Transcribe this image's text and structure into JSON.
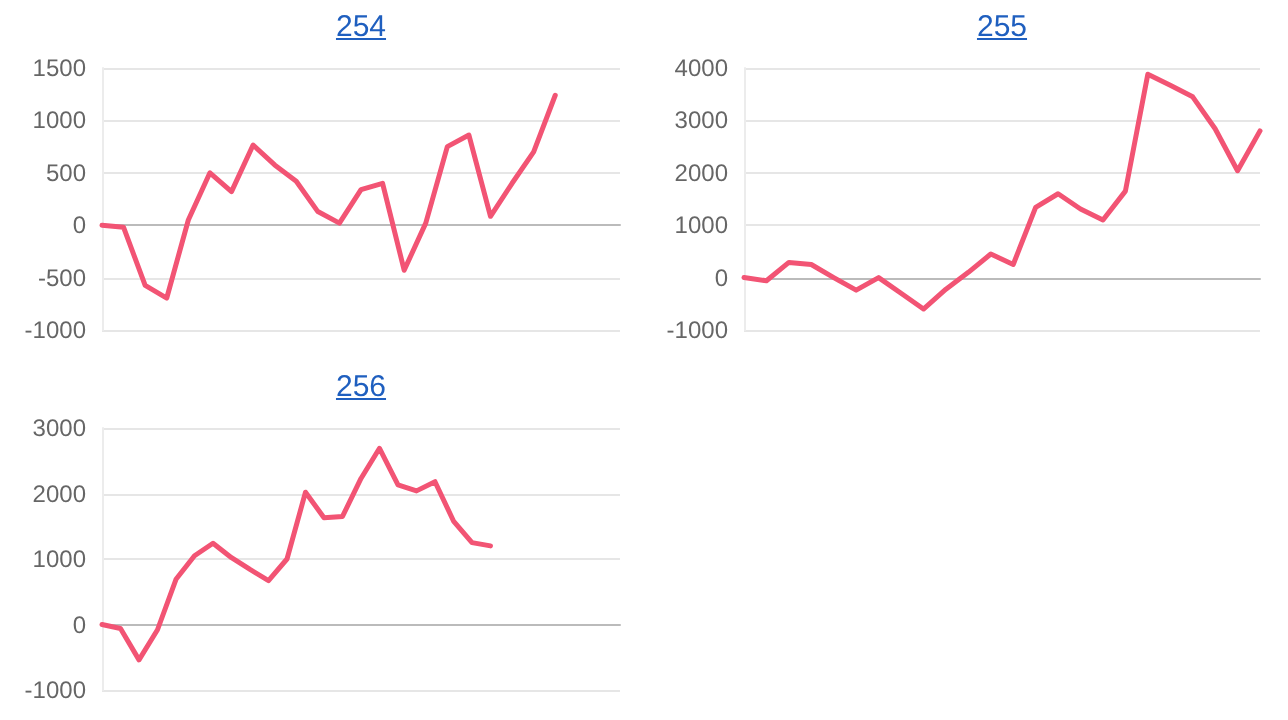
{
  "chart_data": [
    {
      "type": "line",
      "title": "254",
      "categories": [
        null,
        null,
        null,
        null,
        null,
        null,
        null,
        null,
        null,
        null,
        null,
        null,
        null,
        null,
        null,
        null,
        null,
        null,
        null,
        null,
        null,
        null,
        null,
        null,
        null
      ],
      "series": [
        {
          "color": "#f25474",
          "values": [
            0,
            -20,
            -575,
            -695,
            50,
            500,
            320,
            765,
            575,
            420,
            130,
            20,
            340,
            400,
            -430,
            20,
            750,
            860,
            85,
            400,
            700,
            1240,
            null,
            null,
            null
          ]
        }
      ],
      "ylim": [
        -1000,
        1500
      ],
      "yticks": [
        -1000,
        -500,
        0,
        500,
        1000,
        1500
      ],
      "grid": "y",
      "marker": "none",
      "line_style": "solid",
      "tick_labels": "y"
    },
    {
      "type": "line",
      "title": "255",
      "categories": [
        null,
        null,
        null,
        null,
        null,
        null,
        null,
        null,
        null,
        null,
        null,
        null,
        null,
        null,
        null,
        null,
        null,
        null,
        null,
        null,
        null,
        null,
        null,
        null
      ],
      "series": [
        {
          "color": "#f25474",
          "values": [
            0,
            -60,
            290,
            250,
            0,
            -240,
            0,
            -300,
            -600,
            -220,
            100,
            450,
            250,
            1340,
            1600,
            1310,
            1100,
            1650,
            3880,
            3670,
            3450,
            2840,
            2040,
            2800
          ]
        }
      ],
      "ylim": [
        -1000,
        4000
      ],
      "yticks": [
        -1000,
        0,
        1000,
        2000,
        3000,
        4000
      ],
      "grid": "y",
      "marker": "none",
      "line_style": "solid",
      "tick_labels": "y"
    },
    {
      "type": "line",
      "title": "256",
      "categories": [
        null,
        null,
        null,
        null,
        null,
        null,
        null,
        null,
        null,
        null,
        null,
        null,
        null,
        null,
        null,
        null,
        null,
        null,
        null,
        null,
        null,
        null,
        null,
        null,
        null,
        null,
        null,
        null,
        null
      ],
      "series": [
        {
          "color": "#f25474",
          "values": [
            0,
            -60,
            -540,
            -80,
            690,
            1050,
            1240,
            1020,
            840,
            670,
            1000,
            2020,
            1630,
            1650,
            2230,
            2690,
            2130,
            2040,
            2180,
            1580,
            1250,
            1200,
            null,
            null,
            null,
            null,
            null,
            null,
            null
          ]
        }
      ],
      "ylim": [
        -1000,
        3000
      ],
      "yticks": [
        -1000,
        0,
        1000,
        2000,
        3000
      ],
      "grid": "y",
      "marker": "none",
      "line_style": "solid",
      "tick_labels": "y"
    }
  ]
}
